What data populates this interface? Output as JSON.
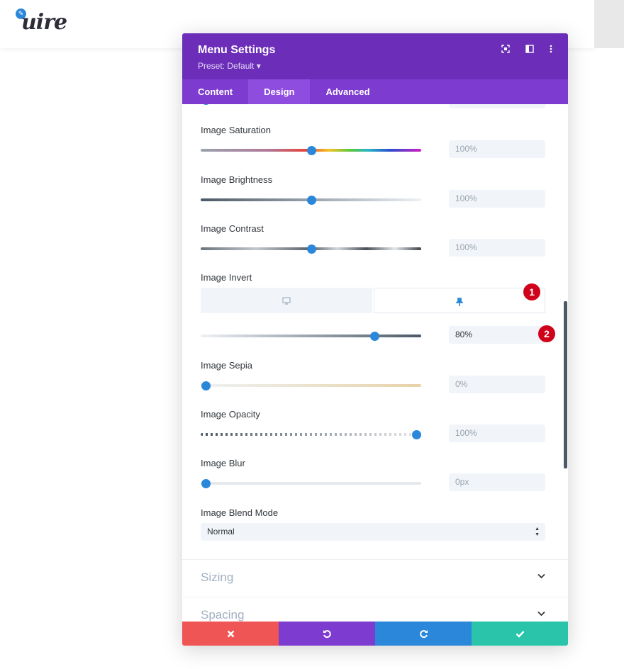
{
  "site": {
    "logo_text": "uire",
    "logo_icon": "pencil-icon"
  },
  "modal": {
    "title": "Menu Settings",
    "preset": "Preset: Default ▾",
    "header_icons": [
      "expand-icon",
      "split-view-icon",
      "more-options-icon"
    ]
  },
  "tabs": [
    {
      "label": "Content",
      "active": false
    },
    {
      "label": "Design",
      "active": true
    },
    {
      "label": "Advanced",
      "active": false
    }
  ],
  "fields": {
    "saturation": {
      "label": "Image Saturation",
      "value": "100%",
      "level": 0.5
    },
    "brightness": {
      "label": "Image Brightness",
      "value": "100%",
      "level": 0.5
    },
    "contrast": {
      "label": "Image Contrast",
      "value": "100%",
      "level": 0.5
    },
    "invert": {
      "label": "Image Invert",
      "value": "80%",
      "level": 0.8
    },
    "sepia": {
      "label": "Image Sepia",
      "value": "0%",
      "level": 0.0
    },
    "opacity": {
      "label": "Image Opacity",
      "value": "100%",
      "level": 1.0
    },
    "blur": {
      "label": "Image Blur",
      "value": "0px",
      "level": 0.0
    },
    "blend_mode": {
      "label": "Image Blend Mode",
      "value": "Normal"
    }
  },
  "device_toggle": {
    "desktop_icon": "desktop-icon",
    "hover_icon": "pin-icon"
  },
  "badges": [
    "1",
    "2"
  ],
  "sections": [
    {
      "title": "Sizing"
    },
    {
      "title": "Spacing"
    }
  ],
  "footer": {
    "cancel_icon": "close-icon",
    "undo_icon": "undo-icon",
    "redo_icon": "redo-icon",
    "save_icon": "check-icon"
  },
  "colors": {
    "header": "#6c2eb9",
    "tabs": "#7d3bcf",
    "accent": "#2b87da",
    "cancel": "#ef5555",
    "undo": "#7e3bd0",
    "redo": "#2b87da",
    "save": "#29c4a9",
    "badge": "#d0021b"
  }
}
